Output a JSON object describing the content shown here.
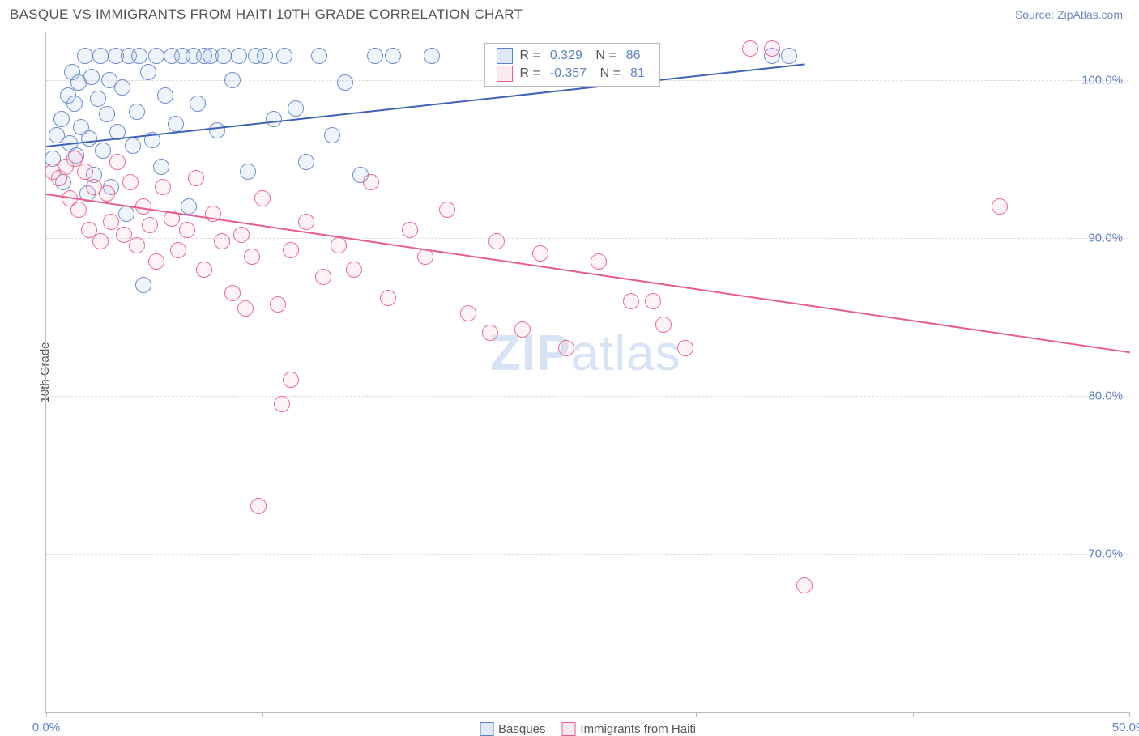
{
  "title": "BASQUE VS IMMIGRANTS FROM HAITI 10TH GRADE CORRELATION CHART",
  "source_label": "Source: ",
  "source_name": "ZipAtlas.com",
  "ylabel": "10th Grade",
  "watermark": {
    "zip": "ZIP",
    "atlas": "atlas",
    "color": "#d8e3f5"
  },
  "chart": {
    "type": "scatter",
    "xlim": [
      0,
      50
    ],
    "ylim": [
      60,
      103
    ],
    "xticks": [
      0,
      10,
      20,
      30,
      40,
      50
    ],
    "xticklabels": {
      "0": "0.0%",
      "50": "50.0%"
    },
    "yticks": [
      70,
      80,
      90,
      100
    ],
    "yticklabels": [
      "70.0%",
      "80.0%",
      "90.0%",
      "100.0%"
    ],
    "background_color": "#ffffff",
    "grid_color": "#dcdcdc",
    "marker_radius": 10,
    "marker_stroke_width": 1.3,
    "fill_opacity": 0.22,
    "series": [
      {
        "name": "Basques",
        "legend_label": "Basques",
        "stroke": "#5f81c9",
        "fill": "#a9c1ec",
        "points": [
          [
            0.3,
            95
          ],
          [
            0.5,
            96.5
          ],
          [
            0.7,
            97.5
          ],
          [
            0.8,
            93.5
          ],
          [
            1.0,
            99
          ],
          [
            1.1,
            96
          ],
          [
            1.2,
            100.5
          ],
          [
            1.3,
            98.5
          ],
          [
            1.4,
            95.2
          ],
          [
            1.5,
            99.8
          ],
          [
            1.6,
            97
          ],
          [
            1.8,
            101.5
          ],
          [
            1.9,
            92.8
          ],
          [
            2.0,
            96.3
          ],
          [
            2.1,
            100.2
          ],
          [
            2.2,
            94
          ],
          [
            2.4,
            98.8
          ],
          [
            2.5,
            101.5
          ],
          [
            2.6,
            95.5
          ],
          [
            2.8,
            97.8
          ],
          [
            2.9,
            100
          ],
          [
            3.0,
            93.2
          ],
          [
            3.2,
            101.5
          ],
          [
            3.3,
            96.7
          ],
          [
            3.5,
            99.5
          ],
          [
            3.7,
            91.5
          ],
          [
            3.8,
            101.5
          ],
          [
            4.0,
            95.8
          ],
          [
            4.2,
            98
          ],
          [
            4.3,
            101.5
          ],
          [
            4.5,
            87
          ],
          [
            4.7,
            100.5
          ],
          [
            4.9,
            96.2
          ],
          [
            5.1,
            101.5
          ],
          [
            5.3,
            94.5
          ],
          [
            5.5,
            99
          ],
          [
            5.8,
            101.5
          ],
          [
            6.0,
            97.2
          ],
          [
            6.3,
            101.5
          ],
          [
            6.6,
            92
          ],
          [
            6.8,
            101.5
          ],
          [
            7.0,
            98.5
          ],
          [
            7.3,
            101.5
          ],
          [
            7.6,
            101.5
          ],
          [
            7.9,
            96.8
          ],
          [
            8.2,
            101.5
          ],
          [
            8.6,
            100
          ],
          [
            8.9,
            101.5
          ],
          [
            9.3,
            94.2
          ],
          [
            9.7,
            101.5
          ],
          [
            10.1,
            101.5
          ],
          [
            10.5,
            97.5
          ],
          [
            11.0,
            101.5
          ],
          [
            11.5,
            98.2
          ],
          [
            12.0,
            94.8
          ],
          [
            12.6,
            101.5
          ],
          [
            13.2,
            96.5
          ],
          [
            13.8,
            99.8
          ],
          [
            14.5,
            94
          ],
          [
            15.2,
            101.5
          ],
          [
            16.0,
            101.5
          ],
          [
            17.8,
            101.5
          ],
          [
            33.5,
            101.5
          ],
          [
            34.3,
            101.5
          ]
        ],
        "trend": {
          "x1": 0,
          "y1": 95.8,
          "x2": 35,
          "y2": 101,
          "color": "#3f62b7",
          "width": 2
        },
        "stats": {
          "R": "0.329",
          "N": "86"
        }
      },
      {
        "name": "Immigrants from Haiti",
        "legend_label": "Immigrants from Haiti",
        "stroke": "#e85d8a",
        "fill": "#f5c0d1",
        "points": [
          [
            0.3,
            94.2
          ],
          [
            0.6,
            93.8
          ],
          [
            0.9,
            94.5
          ],
          [
            1.1,
            92.5
          ],
          [
            1.3,
            95
          ],
          [
            1.5,
            91.8
          ],
          [
            1.8,
            94.2
          ],
          [
            2.0,
            90.5
          ],
          [
            2.2,
            93.2
          ],
          [
            2.5,
            89.8
          ],
          [
            2.8,
            92.8
          ],
          [
            3.0,
            91
          ],
          [
            3.3,
            94.8
          ],
          [
            3.6,
            90.2
          ],
          [
            3.9,
            93.5
          ],
          [
            4.2,
            89.5
          ],
          [
            4.5,
            92
          ],
          [
            4.8,
            90.8
          ],
          [
            5.1,
            88.5
          ],
          [
            5.4,
            93.2
          ],
          [
            5.8,
            91.2
          ],
          [
            6.1,
            89.2
          ],
          [
            6.5,
            90.5
          ],
          [
            6.9,
            93.8
          ],
          [
            7.3,
            88
          ],
          [
            7.7,
            91.5
          ],
          [
            8.1,
            89.8
          ],
          [
            8.6,
            86.5
          ],
          [
            9.0,
            90.2
          ],
          [
            9.5,
            88.8
          ],
          [
            10.0,
            92.5
          ],
          [
            10.7,
            85.8
          ],
          [
            10.9,
            79.5
          ],
          [
            11.3,
            89.2
          ],
          [
            11.3,
            81
          ],
          [
            12.0,
            91
          ],
          [
            12.8,
            87.5
          ],
          [
            13.5,
            89.5
          ],
          [
            14.2,
            88
          ],
          [
            15.0,
            93.5
          ],
          [
            15.8,
            86.2
          ],
          [
            16.8,
            90.5
          ],
          [
            17.5,
            88.8
          ],
          [
            18.5,
            91.8
          ],
          [
            19.5,
            85.2
          ],
          [
            20.5,
            84
          ],
          [
            20.8,
            89.8
          ],
          [
            22.0,
            84.2
          ],
          [
            22.8,
            89
          ],
          [
            24.0,
            83
          ],
          [
            25.5,
            88.5
          ],
          [
            27.0,
            86
          ],
          [
            28.5,
            84.5
          ],
          [
            28.0,
            86
          ],
          [
            29.5,
            83
          ],
          [
            32.5,
            102
          ],
          [
            33.5,
            102
          ],
          [
            35.0,
            68
          ],
          [
            44.0,
            92
          ],
          [
            9.8,
            73
          ],
          [
            9.2,
            85.5
          ]
        ],
        "trend": {
          "x1": 0,
          "y1": 92.8,
          "x2": 50,
          "y2": 82.8,
          "color": "#e85d8a",
          "width": 2
        },
        "stats": {
          "R": "-0.357",
          "N": "81"
        }
      }
    ],
    "stats_box": {
      "left_pct": 40.5,
      "top_pct": 1.5
    }
  }
}
